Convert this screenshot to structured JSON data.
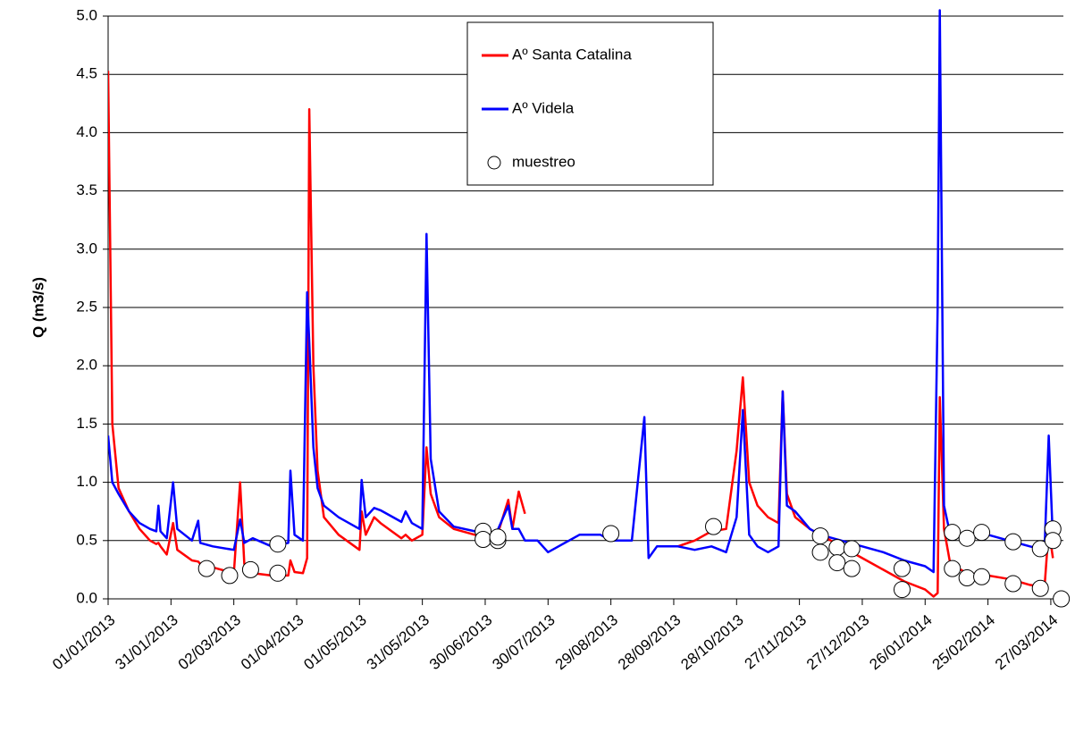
{
  "chart_data": {
    "type": "line",
    "y_label": "Q (m3/s)",
    "x": [
      0,
      2,
      5,
      10,
      15,
      20,
      23,
      24,
      25,
      28,
      31,
      33,
      40,
      43,
      44,
      50,
      60,
      63,
      65,
      69,
      78,
      86,
      87,
      89,
      93,
      95,
      96,
      98,
      100,
      103,
      110,
      120,
      121,
      123,
      127,
      130,
      140,
      142,
      145,
      150,
      152,
      154,
      158,
      165,
      175,
      185,
      191,
      193,
      196,
      199,
      205,
      210,
      215,
      225,
      235,
      240,
      250,
      256,
      258,
      262,
      272,
      280,
      288,
      295,
      300,
      303,
      306,
      310,
      315,
      320,
      322,
      324,
      328,
      335,
      340,
      350,
      360,
      370,
      380,
      390,
      394,
      396,
      397,
      399,
      402,
      410,
      420,
      430,
      440,
      447,
      449,
      451
    ],
    "series": [
      {
        "name": "Aº Santa Catalina",
        "color": "#ff0000",
        "values": [
          4.53,
          1.5,
          0.95,
          0.75,
          0.6,
          0.5,
          0.47,
          0.48,
          0.45,
          0.38,
          0.65,
          0.42,
          0.33,
          0.32,
          0.3,
          0.27,
          0.22,
          1.0,
          0.3,
          0.22,
          0.2,
          0.2,
          0.33,
          0.23,
          0.22,
          0.35,
          4.2,
          2.0,
          1.1,
          0.7,
          0.55,
          0.42,
          0.75,
          0.55,
          0.7,
          0.65,
          0.52,
          0.55,
          0.5,
          0.55,
          1.3,
          0.9,
          0.7,
          0.6,
          0.55,
          0.5,
          0.85,
          0.6,
          0.92,
          0.73,
          null,
          null,
          null,
          null,
          null,
          null,
          null,
          null,
          null,
          null,
          0.45,
          0.5,
          0.58,
          0.6,
          1.27,
          1.9,
          1.0,
          0.8,
          0.7,
          0.65,
          1.78,
          0.9,
          0.7,
          0.6,
          0.55,
          0.45,
          0.35,
          0.25,
          0.15,
          0.08,
          0.02,
          0.05,
          1.73,
          0.6,
          0.3,
          0.22,
          0.2,
          0.17,
          0.12,
          0.1,
          0.6,
          0.35
        ]
      },
      {
        "name": "Aº Videla",
        "color": "#0000ff",
        "values": [
          1.4,
          1.0,
          0.9,
          0.75,
          0.65,
          0.6,
          0.58,
          0.8,
          0.58,
          0.52,
          1.0,
          0.6,
          0.5,
          0.67,
          0.48,
          0.45,
          0.42,
          0.68,
          0.48,
          0.52,
          0.45,
          0.48,
          1.1,
          0.55,
          0.5,
          2.63,
          2.2,
          1.3,
          0.95,
          0.8,
          0.7,
          0.6,
          1.02,
          0.7,
          0.78,
          0.76,
          0.66,
          0.75,
          0.65,
          0.6,
          3.13,
          1.2,
          0.75,
          0.62,
          0.58,
          0.55,
          0.8,
          0.6,
          0.6,
          0.5,
          0.5,
          0.4,
          0.45,
          0.55,
          0.55,
          0.5,
          0.5,
          1.56,
          0.35,
          0.45,
          0.45,
          0.42,
          0.45,
          0.4,
          0.7,
          1.62,
          0.55,
          0.45,
          0.4,
          0.45,
          1.78,
          0.8,
          0.75,
          0.6,
          0.55,
          0.5,
          0.45,
          0.4,
          0.33,
          0.28,
          0.23,
          2.5,
          5.05,
          0.8,
          0.55,
          0.52,
          0.55,
          0.5,
          0.45,
          0.42,
          1.4,
          0.5
        ]
      },
      {
        "name": "muestreo",
        "color": "#ffffff",
        "type": "scatter",
        "x": [
          47,
          58,
          68,
          81,
          81,
          179,
          179,
          186,
          186,
          240,
          289,
          340,
          340,
          348,
          348,
          355,
          355,
          379,
          379,
          403,
          403,
          410,
          410,
          417,
          417,
          432,
          432,
          445,
          445,
          451,
          451,
          455
        ],
        "values": [
          0.26,
          0.2,
          0.25,
          0.22,
          0.47,
          0.58,
          0.51,
          0.5,
          0.53,
          0.56,
          0.62,
          0.54,
          0.4,
          0.44,
          0.31,
          0.43,
          0.26,
          0.26,
          0.08,
          0.57,
          0.26,
          0.52,
          0.18,
          0.57,
          0.19,
          0.49,
          0.13,
          0.43,
          0.09,
          0.6,
          0.5,
          0
        ]
      }
    ],
    "xlim": [
      0,
      456
    ],
    "xticks": [
      {
        "value": 0,
        "label": "01/01/2013"
      },
      {
        "value": 30,
        "label": "31/01/2013"
      },
      {
        "value": 60,
        "label": "02/03/2013"
      },
      {
        "value": 90,
        "label": "01/04/2013"
      },
      {
        "value": 120,
        "label": "01/05/2013"
      },
      {
        "value": 150,
        "label": "31/05/2013"
      },
      {
        "value": 180,
        "label": "30/06/2013"
      },
      {
        "value": 210,
        "label": "30/07/2013"
      },
      {
        "value": 240,
        "label": "29/08/2013"
      },
      {
        "value": 270,
        "label": "28/09/2013"
      },
      {
        "value": 300,
        "label": "28/10/2013"
      },
      {
        "value": 330,
        "label": "27/11/2013"
      },
      {
        "value": 360,
        "label": "27/12/2013"
      },
      {
        "value": 390,
        "label": "26/01/2014"
      },
      {
        "value": 420,
        "label": "25/02/2014"
      },
      {
        "value": 450,
        "label": "27/03/2014"
      }
    ],
    "ylim": [
      0,
      5
    ],
    "yticks": [
      {
        "value": 0,
        "label": "0.0"
      },
      0.5,
      {
        "value": 1,
        "label": "1.0"
      },
      1.5,
      {
        "value": 2,
        "label": "2.0"
      },
      2.5,
      {
        "value": 3,
        "label": "3.0"
      },
      3.5,
      {
        "value": 4,
        "label": "4.0"
      },
      4.5,
      {
        "value": 5,
        "label": "5.0"
      }
    ],
    "grid": true,
    "legend": "top"
  }
}
